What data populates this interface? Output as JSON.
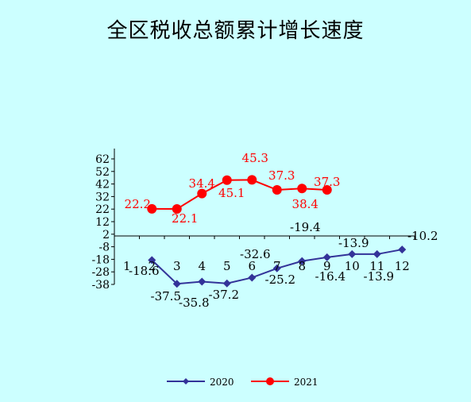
{
  "colors": {
    "background": "#ccffff",
    "series_2020": "#333399",
    "series_2021": "#ff0000"
  },
  "chart_data": {
    "type": "line",
    "title": "全区税收总额累计增长速度",
    "xlabel": "",
    "ylabel": "",
    "ylim": [
      -38,
      62
    ],
    "yticks": [
      62,
      52,
      42,
      32,
      22,
      12,
      2,
      -8,
      -18,
      -28,
      -38
    ],
    "categories": [
      "1",
      "2",
      "3",
      "4",
      "5",
      "6",
      "7",
      "8",
      "9",
      "10",
      "11",
      "12"
    ],
    "legend_position": "bottom",
    "series": [
      {
        "name": "2020",
        "color": "#333399",
        "marker": "diamond",
        "values": [
          null,
          -18.6,
          -37.5,
          -35.8,
          -37.2,
          -32.6,
          -25.2,
          -19.4,
          -16.4,
          -13.9,
          -13.9,
          -10.2
        ]
      },
      {
        "name": "2021",
        "color": "#ff0000",
        "marker": "circle",
        "values": [
          null,
          22.2,
          22.1,
          34.4,
          45.1,
          45.3,
          37.3,
          38.4,
          37.3,
          null,
          null,
          null
        ]
      }
    ]
  }
}
